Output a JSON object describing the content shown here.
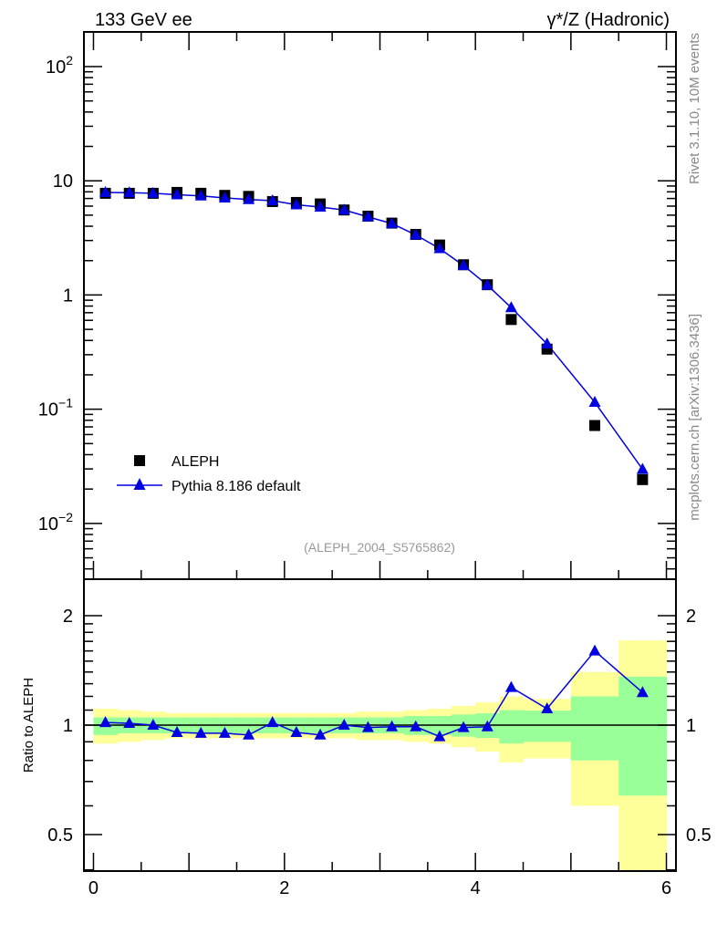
{
  "header": {
    "left_title": "133 GeV ee",
    "right_title": "γ*/Z (Hadronic)",
    "side_label_top": "Rivet 3.1.10,  10M events",
    "side_label_bottom": "mcplots.cern.ch [arXiv:1306.3436]",
    "analysis_id": "(ALEPH_2004_S5765862)"
  },
  "colors": {
    "data": "#000000",
    "mc": "#0000e0",
    "band_stat": "#99ff99",
    "band_total": "#ffff99"
  },
  "chart_data": [
    {
      "type": "scatter",
      "yscale": "log",
      "xlim": [
        -0.1,
        6.1
      ],
      "ylim": [
        0.00325,
        201
      ],
      "yticks": [
        {
          "value": 100,
          "base": "10",
          "exp": "2"
        },
        {
          "value": 10,
          "base": "10",
          "exp": ""
        },
        {
          "value": 1,
          "base": "1",
          "exp": ""
        },
        {
          "value": 0.1,
          "base": "10",
          "exp": "−1"
        },
        {
          "value": 0.01,
          "base": "10",
          "exp": "−2"
        }
      ],
      "legend": {
        "placement": "bottom-left",
        "entries": [
          "ALEPH",
          "Pythia 8.186 default"
        ]
      },
      "bin_edges": [
        0,
        0.25,
        0.5,
        0.75,
        1,
        1.25,
        1.5,
        1.75,
        2,
        2.25,
        2.5,
        2.75,
        3,
        3.25,
        3.5,
        3.75,
        4,
        4.25,
        4.5,
        5,
        5.5,
        6
      ],
      "series": [
        {
          "name": "ALEPH",
          "marker": "square",
          "x": [
            0.125,
            0.375,
            0.625,
            0.875,
            1.125,
            1.375,
            1.625,
            1.875,
            2.125,
            2.375,
            2.625,
            2.875,
            3.125,
            3.375,
            3.625,
            3.875,
            4.125,
            4.375,
            4.75,
            5.25,
            5.75
          ],
          "values": [
            7.77,
            7.77,
            7.77,
            7.91,
            7.77,
            7.45,
            7.3,
            6.58,
            6.46,
            6.27,
            5.55,
            4.9,
            4.26,
            3.39,
            2.74,
            1.84,
            1.23,
            0.61,
            0.336,
            0.072,
            0.0242
          ]
        },
        {
          "name": "Pythia 8.186 default",
          "marker": "triangle",
          "x": [
            0.125,
            0.375,
            0.625,
            0.875,
            1.125,
            1.375,
            1.625,
            1.875,
            2.125,
            2.375,
            2.625,
            2.875,
            3.125,
            3.375,
            3.625,
            3.875,
            4.125,
            4.375,
            4.75,
            5.25,
            5.75
          ],
          "values": [
            7.9,
            7.86,
            7.77,
            7.55,
            7.38,
            7.08,
            6.86,
            6.69,
            6.17,
            5.89,
            5.55,
            4.83,
            4.22,
            3.36,
            2.55,
            1.81,
            1.22,
            0.775,
            0.373,
            0.115,
            0.0298
          ]
        }
      ]
    },
    {
      "type": "line",
      "yscale": "log",
      "ylabel": "Ratio to ALEPH",
      "xlim": [
        -0.1,
        6.1
      ],
      "ylim": [
        0.397,
        2.52
      ],
      "xticks": [
        "0",
        "2",
        "4",
        "6"
      ],
      "yticks": [
        "0.5",
        "1",
        "2"
      ],
      "bin_edges": [
        0,
        0.25,
        0.5,
        0.75,
        1,
        1.25,
        1.5,
        1.75,
        2,
        2.25,
        2.5,
        2.75,
        3,
        3.25,
        3.5,
        3.75,
        4,
        4.25,
        4.5,
        5,
        5.5,
        6
      ],
      "band_total": [
        [
          0.89,
          1.11
        ],
        [
          0.9,
          1.1
        ],
        [
          0.91,
          1.09
        ],
        [
          0.92,
          1.08
        ],
        [
          0.92,
          1.08
        ],
        [
          0.92,
          1.08
        ],
        [
          0.92,
          1.08
        ],
        [
          0.92,
          1.08
        ],
        [
          0.92,
          1.08
        ],
        [
          0.92,
          1.08
        ],
        [
          0.92,
          1.08
        ],
        [
          0.91,
          1.09
        ],
        [
          0.91,
          1.09
        ],
        [
          0.9,
          1.1
        ],
        [
          0.89,
          1.11
        ],
        [
          0.87,
          1.13
        ],
        [
          0.846,
          1.155
        ],
        [
          0.79,
          1.2
        ],
        [
          0.81,
          1.18
        ],
        [
          0.6,
          1.4
        ],
        [
          0.3,
          1.71
        ]
      ],
      "band_stat": [
        [
          0.94,
          1.05
        ],
        [
          0.95,
          1.05
        ],
        [
          0.95,
          1.05
        ],
        [
          0.95,
          1.05
        ],
        [
          0.95,
          1.05
        ],
        [
          0.95,
          1.05
        ],
        [
          0.95,
          1.05
        ],
        [
          0.95,
          1.05
        ],
        [
          0.95,
          1.05
        ],
        [
          0.95,
          1.05
        ],
        [
          0.95,
          1.05
        ],
        [
          0.95,
          1.05
        ],
        [
          0.95,
          1.05
        ],
        [
          0.94,
          1.06
        ],
        [
          0.94,
          1.06
        ],
        [
          0.93,
          1.07
        ],
        [
          0.922,
          1.078
        ],
        [
          0.89,
          1.1
        ],
        [
          0.9,
          1.097
        ],
        [
          0.8,
          1.2
        ],
        [
          0.64,
          1.36
        ]
      ],
      "series": [
        {
          "name": "Pythia 8.186 default",
          "x": [
            0.125,
            0.375,
            0.625,
            0.875,
            1.125,
            1.375,
            1.625,
            1.875,
            2.125,
            2.375,
            2.625,
            2.875,
            3.125,
            3.375,
            3.625,
            3.875,
            4.125,
            4.375,
            4.75,
            5.25,
            5.75
          ],
          "values": [
            1.017,
            1.012,
            1.0,
            0.955,
            0.95,
            0.95,
            0.94,
            1.017,
            0.955,
            0.94,
            1.0,
            0.985,
            0.99,
            0.99,
            0.93,
            0.985,
            0.99,
            1.27,
            1.11,
            1.6,
            1.23
          ]
        }
      ]
    }
  ]
}
